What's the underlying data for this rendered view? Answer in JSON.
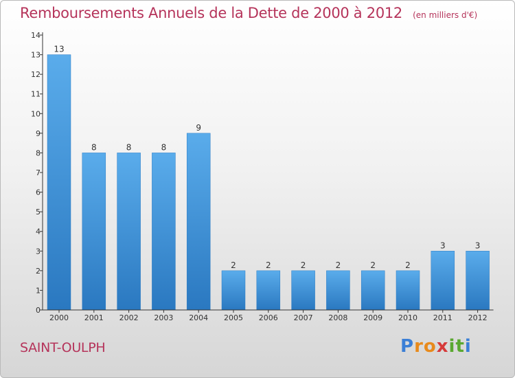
{
  "chart_data": {
    "type": "bar",
    "title": "Remboursements Annuels de la Dette de 2000 à 2012",
    "subtitle": "(en milliers d'€)",
    "categories": [
      "2000",
      "2001",
      "2002",
      "2003",
      "2004",
      "2005",
      "2006",
      "2007",
      "2008",
      "2009",
      "2010",
      "2011",
      "2012"
    ],
    "values": [
      13,
      8,
      8,
      8,
      9,
      2,
      2,
      2,
      2,
      2,
      2,
      3,
      3
    ],
    "data_labels": [
      "13",
      "8",
      "8",
      "8",
      "9",
      "2",
      "2",
      "2",
      "2",
      "2",
      "2",
      "3",
      "3"
    ],
    "y_ticks": [
      "0",
      "1",
      "2",
      "3",
      "4",
      "5",
      "6",
      "7",
      "8",
      "9",
      "10",
      "11",
      "12",
      "13",
      "14"
    ],
    "ylim": [
      0,
      14
    ],
    "grid": false,
    "bar_color": "#4f9fe0",
    "bar_color_dark": "#2a78c0"
  },
  "footer": {
    "place": "SAINT-OULPH",
    "logo_letters": [
      {
        "ch": "P",
        "color": "#3b7fd6"
      },
      {
        "ch": "r",
        "color": "#e88a1c"
      },
      {
        "ch": "o",
        "color": "#e88a1c"
      },
      {
        "ch": "x",
        "color": "#d63a3a"
      },
      {
        "ch": "i",
        "color": "#5aa830"
      },
      {
        "ch": "t",
        "color": "#5aa830"
      },
      {
        "ch": "i",
        "color": "#3b7fd6"
      }
    ]
  },
  "colors": {
    "title": "#b5335a",
    "axis": "#333333"
  }
}
